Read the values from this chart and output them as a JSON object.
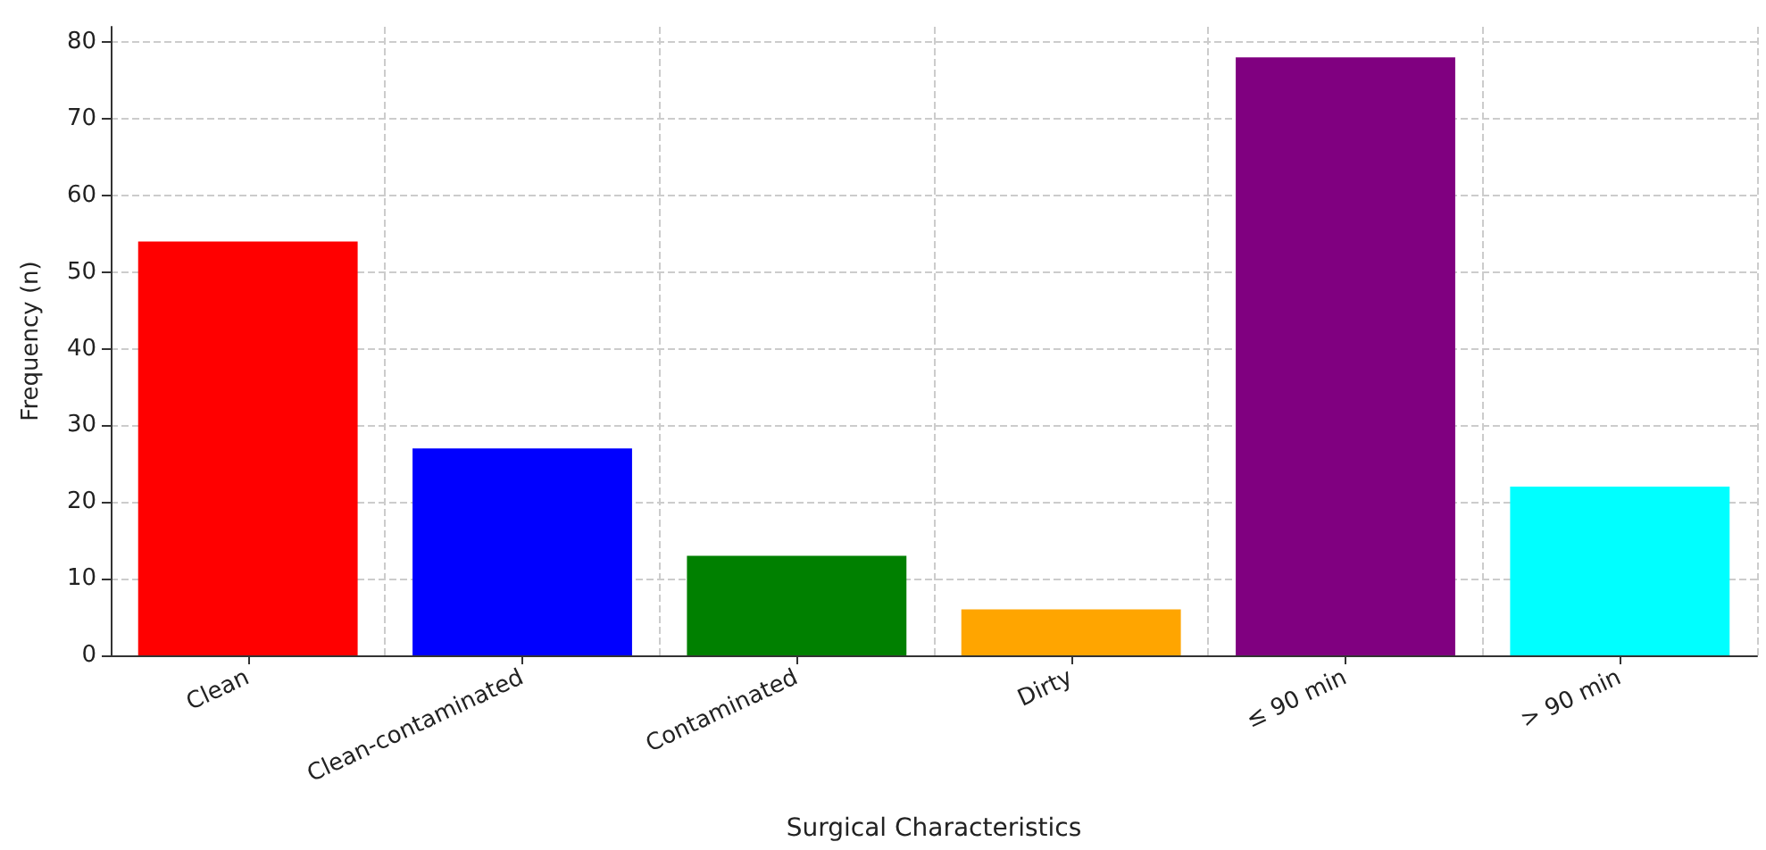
{
  "chart_data": {
    "type": "bar",
    "xlabel": "Surgical Characteristics",
    "ylabel": "Frequency (n)",
    "categories": [
      "Clean",
      "Clean-contaminated",
      "Contaminated",
      "Dirty",
      "≤ 90 min",
      "> 90 min"
    ],
    "values": [
      54,
      27,
      13,
      6,
      78,
      22
    ],
    "colors": [
      "#ff0000",
      "#0000ff",
      "#008000",
      "#ffa500",
      "#800080",
      "#00ffff"
    ],
    "ylim": [
      0,
      82
    ],
    "yticks": [
      0,
      10,
      20,
      30,
      40,
      50,
      60,
      70,
      80
    ],
    "grid": true
  }
}
